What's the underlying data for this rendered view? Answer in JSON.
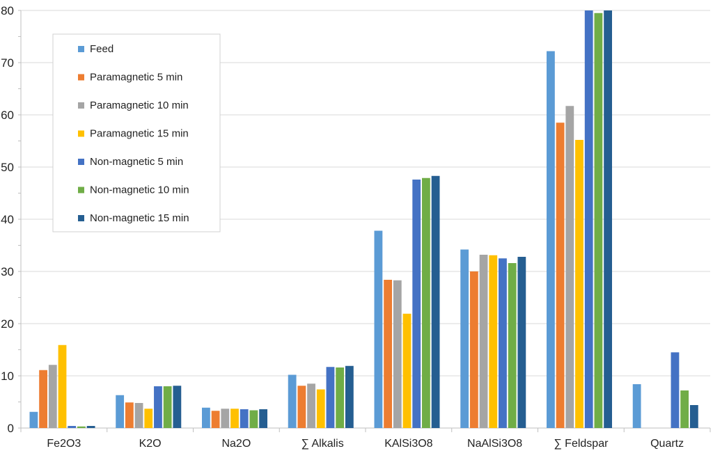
{
  "chart_data": {
    "type": "bar",
    "title": "",
    "xlabel": "",
    "ylabel": "",
    "ylim": [
      0,
      80
    ],
    "yticks": [
      0,
      10,
      20,
      30,
      40,
      50,
      60,
      70,
      80
    ],
    "grid": true,
    "legend_position": "top-left",
    "categories": [
      "Fe2O3",
      "K2O",
      "Na2O",
      "∑ Alkalis",
      "KAlSi3O8",
      "NaAlSi3O8",
      "∑ Feldspar",
      "Quartz"
    ],
    "series": [
      {
        "name": "Feed",
        "color": "#5B9BD5",
        "values": [
          3.1,
          6.3,
          3.9,
          10.2,
          37.8,
          34.2,
          72.2,
          8.4
        ]
      },
      {
        "name": "Paramagnetic 5 min",
        "color": "#ED7D31",
        "values": [
          11.1,
          4.9,
          3.3,
          8.1,
          28.4,
          30.0,
          58.5,
          0
        ]
      },
      {
        "name": "Paramagnetic 10 min",
        "color": "#A5A5A5",
        "values": [
          12.1,
          4.8,
          3.7,
          8.5,
          28.3,
          33.2,
          61.7,
          0
        ]
      },
      {
        "name": "Paramagnetic 15 min",
        "color": "#FFC000",
        "values": [
          15.9,
          3.7,
          3.7,
          7.4,
          21.9,
          33.1,
          55.2,
          0
        ]
      },
      {
        "name": "Non-magnetic 5 min",
        "color": "#4472C4",
        "values": [
          0.4,
          8.0,
          3.6,
          11.7,
          47.6,
          32.5,
          80.1,
          14.5
        ]
      },
      {
        "name": "Non-magnetic 10 min",
        "color": "#70AD47",
        "values": [
          0.3,
          8.0,
          3.4,
          11.6,
          47.9,
          31.6,
          79.5,
          7.2
        ]
      },
      {
        "name": "Non-magnetic 15 min",
        "color": "#255E91",
        "values": [
          0.4,
          8.1,
          3.6,
          11.9,
          48.3,
          32.8,
          80.0,
          4.4
        ]
      }
    ]
  }
}
